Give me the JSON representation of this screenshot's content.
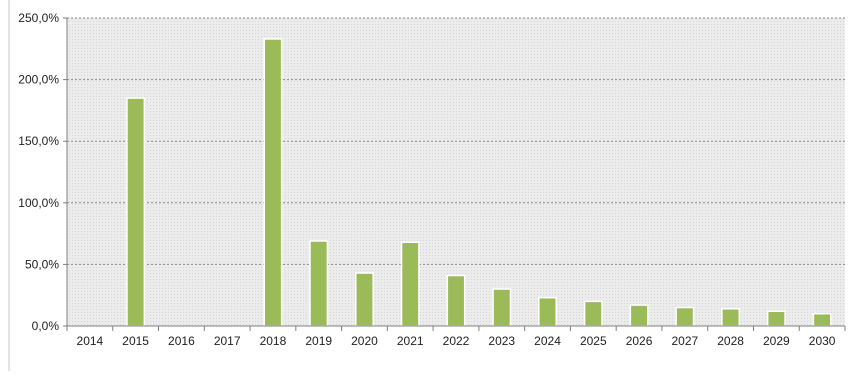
{
  "chart_data": {
    "type": "bar",
    "title": "",
    "xlabel": "",
    "ylabel": "",
    "categories": [
      "2014",
      "2015",
      "2016",
      "2017",
      "2018",
      "2019",
      "2020",
      "2021",
      "2022",
      "2023",
      "2024",
      "2025",
      "2026",
      "2027",
      "2028",
      "2029",
      "2030"
    ],
    "values": [
      null,
      185,
      null,
      null,
      233,
      69,
      43,
      68,
      41,
      30,
      23,
      20,
      17,
      15,
      14,
      12,
      10
    ],
    "y_ticks": [
      0,
      50,
      100,
      150,
      200,
      250
    ],
    "y_tick_labels": [
      "0,0%",
      "50,0%",
      "100,0%",
      "150,0%",
      "200,0%",
      "250,0%"
    ],
    "ylim": [
      0,
      250
    ],
    "grid": true,
    "legend": "none",
    "colors": {
      "bar": "#9bbb59",
      "bar_edge": "#ffffff",
      "plot_bg": "#e9e9e9",
      "grid": "#8c8c8c",
      "axis": "#7f7f7f"
    }
  }
}
